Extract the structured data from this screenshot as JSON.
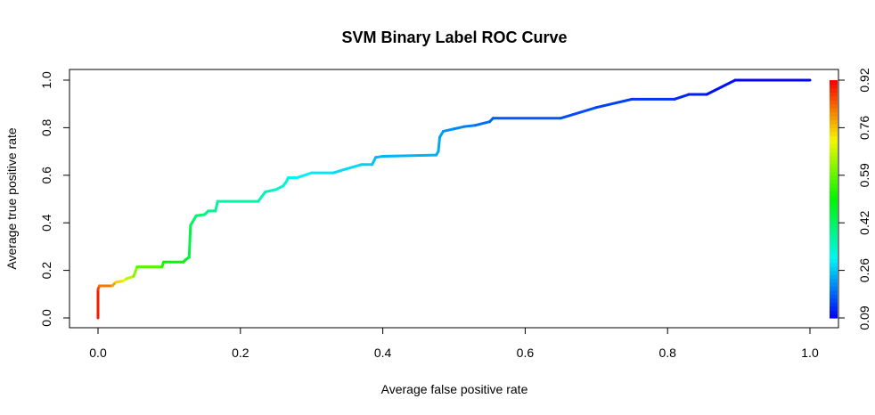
{
  "chart_data": {
    "type": "line",
    "title": "SVM Binary Label ROC Curve",
    "xlabel": "Average false positive rate",
    "ylabel": "Average true positive rate",
    "xlim": [
      0,
      1
    ],
    "ylim": [
      0,
      1
    ],
    "x_ticks": [
      "0.0",
      "0.2",
      "0.4",
      "0.6",
      "0.8",
      "1.0"
    ],
    "y_ticks": [
      "0.0",
      "0.2",
      "0.4",
      "0.6",
      "0.8",
      "1.0"
    ],
    "grid": false,
    "legend": "none",
    "colorbar": {
      "position": "right",
      "range": [
        0.09,
        0.92
      ],
      "ticks": [
        "0.09",
        "0.26",
        "0.42",
        "0.59",
        "0.76",
        "0.92"
      ],
      "colormap": "rainbow (red at high threshold, blue at low threshold)"
    },
    "series": [
      {
        "x": [
          0.0,
          0.0,
          0.002,
          0.02,
          0.025,
          0.035,
          0.04,
          0.05,
          0.055,
          0.09,
          0.092,
          0.12,
          0.123,
          0.128,
          0.13,
          0.135,
          0.138,
          0.15,
          0.155,
          0.165,
          0.168,
          0.225,
          0.235,
          0.25,
          0.26,
          0.265,
          0.267,
          0.28,
          0.3,
          0.33,
          0.37,
          0.385,
          0.39,
          0.4,
          0.475,
          0.478,
          0.48,
          0.485,
          0.5,
          0.515,
          0.53,
          0.55,
          0.555,
          0.65,
          0.7,
          0.75,
          0.81,
          0.83,
          0.855,
          0.895,
          0.9,
          1.0
        ],
        "y": [
          0.0,
          0.12,
          0.135,
          0.135,
          0.15,
          0.155,
          0.165,
          0.175,
          0.215,
          0.215,
          0.235,
          0.235,
          0.245,
          0.255,
          0.39,
          0.415,
          0.43,
          0.435,
          0.45,
          0.45,
          0.49,
          0.49,
          0.53,
          0.54,
          0.555,
          0.575,
          0.59,
          0.59,
          0.61,
          0.61,
          0.645,
          0.645,
          0.675,
          0.68,
          0.685,
          0.7,
          0.76,
          0.785,
          0.795,
          0.805,
          0.81,
          0.825,
          0.84,
          0.84,
          0.885,
          0.92,
          0.92,
          0.94,
          0.94,
          1.0,
          1.0,
          1.0
        ],
        "threshold": [
          0.92,
          0.88,
          0.84,
          0.8,
          0.76,
          0.72,
          0.68,
          0.64,
          0.6,
          0.56,
          0.52,
          0.5,
          0.48,
          0.46,
          0.44,
          0.42,
          0.41,
          0.4,
          0.39,
          0.38,
          0.37,
          0.36,
          0.35,
          0.34,
          0.33,
          0.32,
          0.31,
          0.3,
          0.29,
          0.28,
          0.27,
          0.26,
          0.25,
          0.245,
          0.24,
          0.235,
          0.23,
          0.22,
          0.21,
          0.2,
          0.19,
          0.18,
          0.17,
          0.16,
          0.15,
          0.14,
          0.13,
          0.12,
          0.11,
          0.1,
          0.095,
          0.09
        ]
      }
    ]
  }
}
